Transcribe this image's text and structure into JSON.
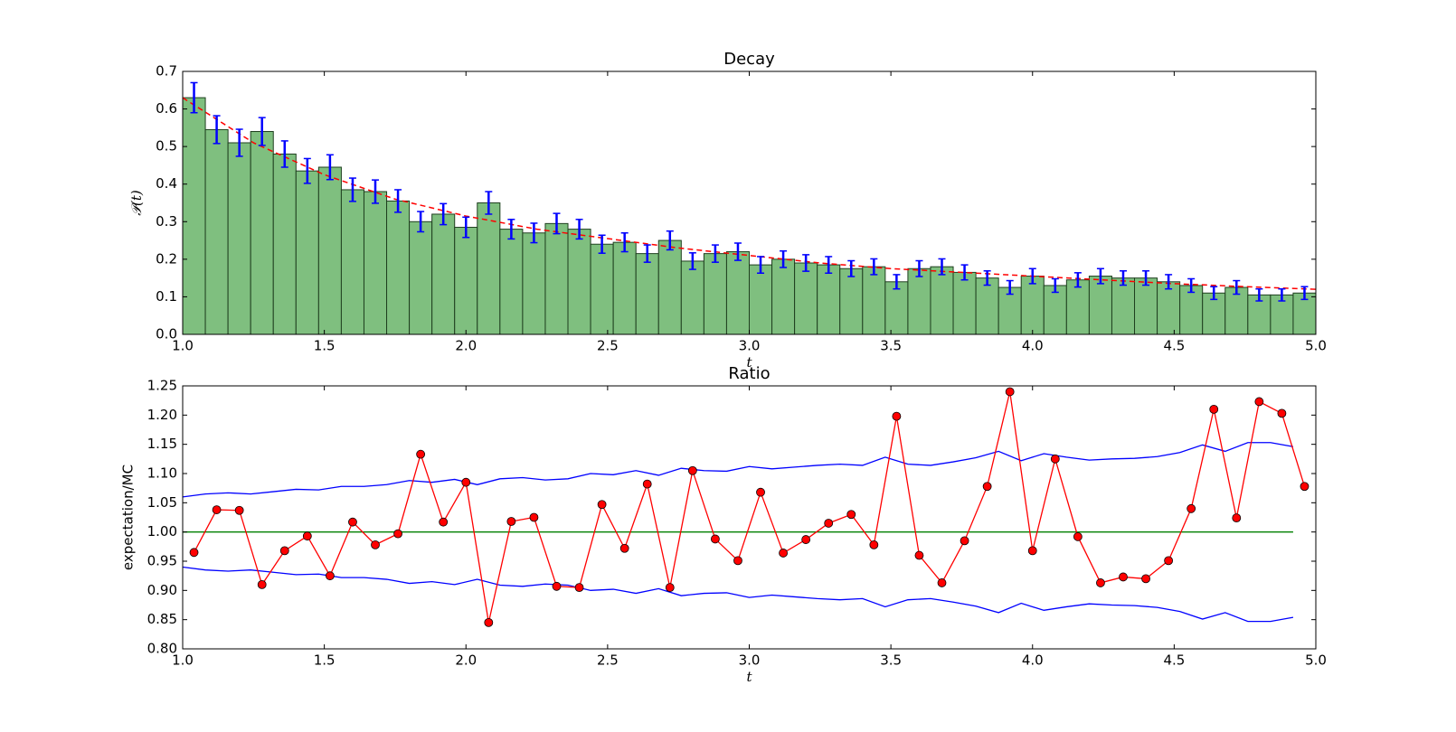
{
  "chart_data": [
    {
      "type": "histogram",
      "title": "Decay",
      "xlabel": "t",
      "ylabel": "𝒫(t)",
      "bins": [
        1.0,
        1.08,
        1.16,
        1.24,
        1.32,
        1.4,
        1.48,
        1.56,
        1.64,
        1.72,
        1.8,
        1.88,
        1.96,
        2.04,
        2.12,
        2.2,
        2.28,
        2.36,
        2.44,
        2.52,
        2.6,
        2.68,
        2.76,
        2.84,
        2.92,
        3.0,
        3.08,
        3.16,
        3.24,
        3.32,
        3.4,
        3.48,
        3.56,
        3.64,
        3.72,
        3.8,
        3.88,
        3.96,
        4.04,
        4.12,
        4.2,
        4.28,
        4.36,
        4.44,
        4.52,
        4.6,
        4.68,
        4.76,
        4.84,
        4.92,
        5.0
      ],
      "values": [
        0.63,
        0.545,
        0.51,
        0.54,
        0.48,
        0.435,
        0.445,
        0.385,
        0.38,
        0.355,
        0.3,
        0.32,
        0.285,
        0.35,
        0.28,
        0.27,
        0.295,
        0.28,
        0.24,
        0.245,
        0.215,
        0.25,
        0.195,
        0.215,
        0.22,
        0.185,
        0.2,
        0.19,
        0.185,
        0.175,
        0.18,
        0.14,
        0.175,
        0.18,
        0.165,
        0.15,
        0.125,
        0.155,
        0.13,
        0.145,
        0.155,
        0.15,
        0.15,
        0.14,
        0.13,
        0.11,
        0.125,
        0.105,
        0.105,
        0.11
      ],
      "errors": [
        0.04,
        0.037,
        0.036,
        0.037,
        0.035,
        0.033,
        0.033,
        0.031,
        0.031,
        0.03,
        0.027,
        0.028,
        0.027,
        0.03,
        0.026,
        0.026,
        0.027,
        0.026,
        0.024,
        0.025,
        0.023,
        0.025,
        0.022,
        0.023,
        0.023,
        0.022,
        0.022,
        0.022,
        0.022,
        0.021,
        0.021,
        0.019,
        0.021,
        0.021,
        0.02,
        0.019,
        0.018,
        0.02,
        0.018,
        0.019,
        0.02,
        0.019,
        0.019,
        0.019,
        0.018,
        0.017,
        0.018,
        0.016,
        0.016,
        0.017
      ],
      "color": "#7fbf7f",
      "edgecolor": "#1f3f1f",
      "error_color": "#0000ff",
      "fit": {
        "x": [
          1.0,
          1.25,
          1.5,
          1.75,
          2.0,
          2.25,
          2.5,
          2.75,
          3.0,
          3.25,
          3.5,
          3.75,
          4.0,
          4.25,
          4.5,
          4.75,
          5.0
        ],
        "values": [
          0.63,
          0.51,
          0.425,
          0.36,
          0.315,
          0.28,
          0.255,
          0.23,
          0.21,
          0.19,
          0.175,
          0.165,
          0.155,
          0.145,
          0.135,
          0.127,
          0.12
        ],
        "color": "#ff0000",
        "style": "dashed"
      },
      "xlim": [
        1.0,
        5.0
      ],
      "ylim": [
        0.0,
        0.7
      ],
      "xticks": [
        {
          "value": 1.0,
          "label": "1.0"
        },
        1.5,
        {
          "value": 2.0,
          "label": "2.0"
        },
        2.5,
        {
          "value": 3.0,
          "label": "3.0"
        },
        3.5,
        {
          "value": 4.0,
          "label": "4.0"
        },
        4.5,
        {
          "value": 5.0,
          "label": "5.0"
        }
      ],
      "yticks": [
        {
          "value": 0.0,
          "label": "0.0"
        },
        0.1,
        0.2,
        0.3,
        0.4,
        0.5,
        0.6,
        0.7
      ]
    },
    {
      "type": "line",
      "title": "Ratio",
      "xlabel": "t",
      "ylabel": "expectation/MC",
      "series": [
        {
          "color": "#0000ff",
          "marker": null,
          "x": [
            1.0,
            1.08,
            1.16,
            1.24,
            1.32,
            1.4,
            1.48,
            1.56,
            1.64,
            1.72,
            1.8,
            1.88,
            1.96,
            2.04,
            2.12,
            2.2,
            2.28,
            2.36,
            2.44,
            2.52,
            2.6,
            2.68,
            2.76,
            2.84,
            2.92,
            3.0,
            3.08,
            3.16,
            3.24,
            3.32,
            3.4,
            3.48,
            3.56,
            3.64,
            3.72,
            3.8,
            3.88,
            3.96,
            4.04,
            4.12,
            4.2,
            4.28,
            4.36,
            4.44,
            4.52,
            4.6,
            4.68,
            4.76,
            4.84,
            4.92
          ],
          "values": [
            1.06,
            1.065,
            1.067,
            1.065,
            1.069,
            1.073,
            1.072,
            1.078,
            1.078,
            1.081,
            1.088,
            1.085,
            1.09,
            1.081,
            1.091,
            1.093,
            1.089,
            1.091,
            1.1,
            1.098,
            1.105,
            1.097,
            1.109,
            1.105,
            1.104,
            1.112,
            1.108,
            1.111,
            1.114,
            1.116,
            1.114,
            1.128,
            1.116,
            1.114,
            1.12,
            1.127,
            1.138,
            1.122,
            1.134,
            1.128,
            1.123,
            1.125,
            1.126,
            1.129,
            1.136,
            1.149,
            1.138,
            1.153,
            1.153,
            1.146
          ]
        },
        {
          "color": "#0000ff",
          "marker": null,
          "x": [
            1.0,
            1.08,
            1.16,
            1.24,
            1.32,
            1.4,
            1.48,
            1.56,
            1.64,
            1.72,
            1.8,
            1.88,
            1.96,
            2.04,
            2.12,
            2.2,
            2.28,
            2.36,
            2.44,
            2.52,
            2.6,
            2.68,
            2.76,
            2.84,
            2.92,
            3.0,
            3.08,
            3.16,
            3.24,
            3.32,
            3.4,
            3.48,
            3.56,
            3.64,
            3.72,
            3.8,
            3.88,
            3.96,
            4.04,
            4.12,
            4.2,
            4.28,
            4.36,
            4.44,
            4.52,
            4.6,
            4.68,
            4.76,
            4.84,
            4.92
          ],
          "values": [
            0.94,
            0.935,
            0.933,
            0.935,
            0.931,
            0.927,
            0.928,
            0.922,
            0.922,
            0.919,
            0.912,
            0.915,
            0.91,
            0.919,
            0.909,
            0.907,
            0.911,
            0.909,
            0.9,
            0.902,
            0.895,
            0.903,
            0.891,
            0.895,
            0.896,
            0.888,
            0.892,
            0.889,
            0.886,
            0.884,
            0.886,
            0.872,
            0.884,
            0.886,
            0.88,
            0.873,
            0.862,
            0.878,
            0.866,
            0.872,
            0.877,
            0.875,
            0.874,
            0.871,
            0.864,
            0.851,
            0.862,
            0.847,
            0.847,
            0.854
          ]
        },
        {
          "color": "#008000",
          "marker": null,
          "x": [
            1.0,
            4.92
          ],
          "values": [
            1.0,
            1.0
          ]
        },
        {
          "color": "#ff0000",
          "marker": "o",
          "x": [
            1.04,
            1.12,
            1.2,
            1.28,
            1.36,
            1.44,
            1.52,
            1.6,
            1.68,
            1.76,
            1.84,
            1.92,
            2.0,
            2.08,
            2.16,
            2.24,
            2.32,
            2.4,
            2.48,
            2.56,
            2.64,
            2.72,
            2.8,
            2.88,
            2.96,
            3.04,
            3.12,
            3.2,
            3.28,
            3.36,
            3.44,
            3.52,
            3.6,
            3.68,
            3.76,
            3.84,
            3.92,
            4.0,
            4.08,
            4.16,
            4.24,
            4.32,
            4.4,
            4.48,
            4.56,
            4.64,
            4.72,
            4.8,
            4.88,
            4.96
          ],
          "values": [
            0.965,
            1.038,
            1.037,
            0.91,
            0.968,
            0.993,
            0.925,
            1.017,
            0.978,
            0.997,
            1.133,
            1.017,
            1.085,
            0.845,
            1.018,
            1.025,
            0.907,
            0.905,
            1.047,
            0.972,
            1.082,
            0.905,
            1.105,
            0.988,
            0.951,
            1.068,
            0.964,
            0.987,
            1.015,
            1.03,
            0.978,
            1.198,
            0.96,
            0.913,
            0.985,
            1.078,
            1.24,
            0.968,
            1.125,
            0.992,
            0.913,
            0.923,
            0.92,
            0.951,
            1.04,
            1.21,
            1.024,
            1.223,
            1.203,
            1.078
          ]
        }
      ],
      "xlim": [
        1.0,
        5.0
      ],
      "ylim": [
        0.8,
        1.25
      ],
      "xticks": [
        {
          "value": 1.0,
          "label": "1.0"
        },
        1.5,
        {
          "value": 2.0,
          "label": "2.0"
        },
        2.5,
        {
          "value": 3.0,
          "label": "3.0"
        },
        3.5,
        {
          "value": 4.0,
          "label": "4.0"
        },
        4.5,
        {
          "value": 5.0,
          "label": "5.0"
        }
      ],
      "yticks": [
        {
          "value": 0.8,
          "label": "0.80"
        },
        0.85,
        {
          "value": 0.9,
          "label": "0.90"
        },
        0.95,
        {
          "value": 1.0,
          "label": "1.00"
        },
        1.05,
        {
          "value": 1.1,
          "label": "1.10"
        },
        1.15,
        {
          "value": 1.2,
          "label": "1.20"
        },
        1.25
      ]
    }
  ]
}
